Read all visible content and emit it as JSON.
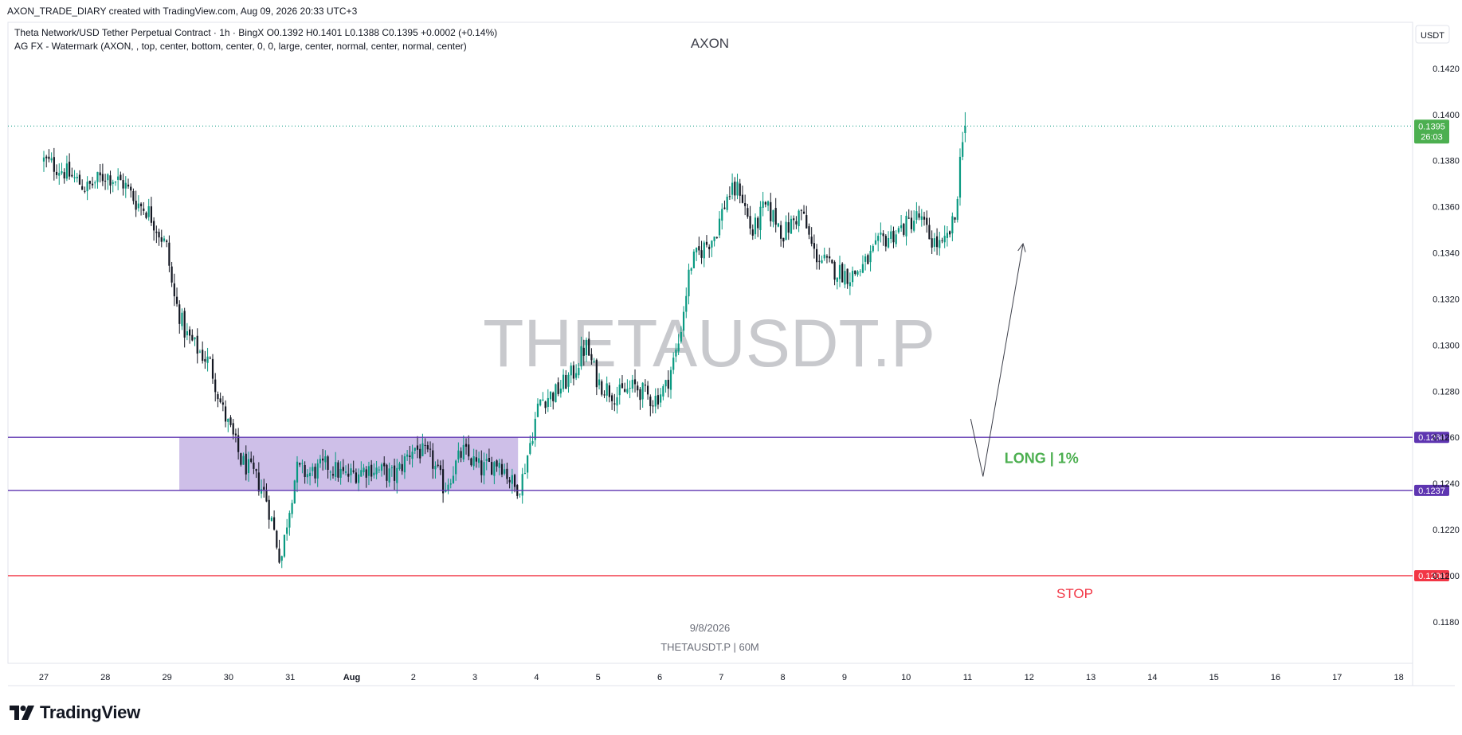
{
  "header": {
    "created_by": "AXON_TRADE_DIARY created with TradingView.com, Aug 09, 2026 20:33 UTC+3"
  },
  "legend": {
    "symbol_line": "Theta Network/USD Tether Perpetual Contract · 1h · BingX  O0.1392  H0.1401  L0.1388  C0.1395  +0.0002 (+0.14%)",
    "indicator_line": "AG FX - Watermark (AXON, , top, center, bottom, center, 0, 0, large, center, normal, center, normal, center)"
  },
  "watermark": {
    "top_text": "AXON",
    "center_text": "THETAUSDT.P",
    "bottom_date": "9/8/2026",
    "bottom_symbol": "THETAUSDT.P | 60M"
  },
  "currency_button": "USDT",
  "colors": {
    "up": "#089981",
    "down": "#131722",
    "zone_fill": "#b39ddb",
    "zone_line": "#5e35b1",
    "stop_line": "#f23645",
    "long_text": "#4caf50",
    "last_price_bg": "#4caf50"
  },
  "chart_data": {
    "type": "candlestick",
    "symbol": "THETAUSDT.P",
    "timeframe": "60M",
    "y_axis": {
      "ticks": [
        "0.1420",
        "0.1400",
        "0.1380",
        "0.1360",
        "0.1340",
        "0.1320",
        "0.1300",
        "0.1280",
        "0.1260",
        "0.1240",
        "0.1220",
        "0.1200",
        "0.1180"
      ],
      "ylim": [
        0.1162,
        0.144
      ]
    },
    "x_axis": {
      "labels": [
        "27",
        "28",
        "29",
        "30",
        "31",
        "Aug",
        "2",
        "3",
        "4",
        "5",
        "6",
        "7",
        "8",
        "9",
        "10",
        "11",
        "12",
        "13",
        "14",
        "15",
        "16",
        "17",
        "18"
      ],
      "bold": [
        "Aug"
      ]
    },
    "last_price": {
      "price": "0.1395",
      "countdown": "26:03",
      "value": 0.1395
    },
    "path_points": [
      [
        0,
        0.138
      ],
      [
        0.3,
        0.1376
      ],
      [
        0.7,
        0.1368
      ],
      [
        1.0,
        0.1374
      ],
      [
        1.3,
        0.137
      ],
      [
        1.5,
        0.1362
      ],
      [
        1.7,
        0.1358
      ],
      [
        2.0,
        0.1342
      ],
      [
        2.1,
        0.1322
      ],
      [
        2.3,
        0.1305
      ],
      [
        2.5,
        0.1298
      ],
      [
        2.7,
        0.1292
      ],
      [
        2.9,
        0.1272
      ],
      [
        3.1,
        0.1258
      ],
      [
        3.2,
        0.125
      ],
      [
        3.4,
        0.1244
      ],
      [
        3.6,
        0.1235
      ],
      [
        3.75,
        0.1218
      ],
      [
        3.85,
        0.1206
      ],
      [
        3.95,
        0.1224
      ],
      [
        4.1,
        0.1246
      ],
      [
        4.3,
        0.1244
      ],
      [
        4.6,
        0.1248
      ],
      [
        4.9,
        0.1243
      ],
      [
        5.3,
        0.1247
      ],
      [
        5.7,
        0.1243
      ],
      [
        6.0,
        0.1256
      ],
      [
        6.3,
        0.125
      ],
      [
        6.5,
        0.1238
      ],
      [
        6.8,
        0.1254
      ],
      [
        7.1,
        0.1246
      ],
      [
        7.4,
        0.125
      ],
      [
        7.65,
        0.1238
      ],
      [
        7.75,
        0.124
      ],
      [
        7.9,
        0.1258
      ],
      [
        8.05,
        0.1276
      ],
      [
        8.3,
        0.1279
      ],
      [
        8.6,
        0.1288
      ],
      [
        8.8,
        0.13
      ],
      [
        9.0,
        0.1284
      ],
      [
        9.3,
        0.1278
      ],
      [
        9.6,
        0.1282
      ],
      [
        9.9,
        0.1276
      ],
      [
        10.1,
        0.1282
      ],
      [
        10.3,
        0.13
      ],
      [
        10.5,
        0.1335
      ],
      [
        10.7,
        0.1342
      ],
      [
        10.9,
        0.1348
      ],
      [
        11.1,
        0.1365
      ],
      [
        11.3,
        0.1368
      ],
      [
        11.5,
        0.1348
      ],
      [
        11.7,
        0.136
      ],
      [
        11.9,
        0.1354
      ],
      [
        12.0,
        0.1348
      ],
      [
        12.3,
        0.1358
      ],
      [
        12.5,
        0.134
      ],
      [
        12.8,
        0.1333
      ],
      [
        13.1,
        0.133
      ],
      [
        13.3,
        0.1334
      ],
      [
        13.6,
        0.1345
      ],
      [
        13.9,
        0.135
      ],
      [
        14.2,
        0.1356
      ],
      [
        14.4,
        0.1346
      ],
      [
        14.6,
        0.1342
      ],
      [
        14.8,
        0.1355
      ],
      [
        14.85,
        0.1372
      ],
      [
        14.92,
        0.1392
      ],
      [
        14.96,
        0.1395
      ]
    ],
    "annotations": [
      {
        "type": "zone",
        "from": 0.1237,
        "to": 0.126,
        "x_from": 2.2,
        "x_to": 7.7,
        "label_top": "0.1260",
        "label_bottom": "0.1237"
      },
      {
        "type": "hline",
        "price": 0.126,
        "label": "0.1260"
      },
      {
        "type": "hline",
        "price": 0.1237,
        "label": "0.1237"
      },
      {
        "type": "hline",
        "price": 0.12,
        "label": "0.1200",
        "text": "STOP"
      },
      {
        "type": "text",
        "text": "LONG  |  1%",
        "price": 0.1251,
        "x": 16.2
      },
      {
        "type": "path",
        "points": [
          [
            15.05,
            0.1268
          ],
          [
            15.25,
            0.1243
          ],
          [
            15.9,
            0.1344
          ]
        ]
      }
    ]
  }
}
